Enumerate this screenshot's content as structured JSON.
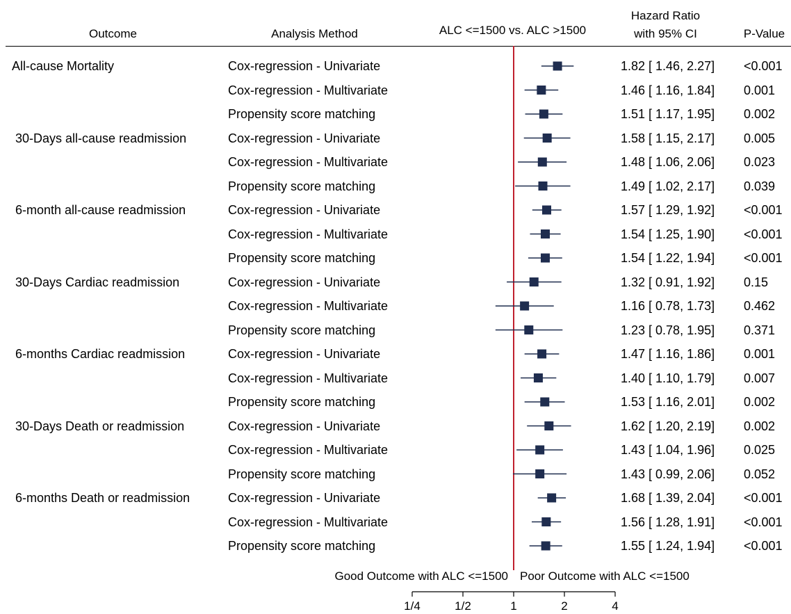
{
  "headers": {
    "outcome": "Outcome",
    "method": "Analysis Method",
    "comparison": "ALC <=1500 vs. ALC >1500",
    "hr_line1": "Hazard Ratio",
    "hr_line2": "with 95% CI",
    "pvalue": "P-Value"
  },
  "footer": {
    "left_label": "Good Outcome with ALC <=1500",
    "right_label": "Poor Outcome with ALC <=1500"
  },
  "colors": {
    "marker": "#1f2d4f",
    "ref_line": "#c0202e",
    "axis": "#000000"
  },
  "chart_data": {
    "type": "forest",
    "x_scale": "log2",
    "xlim": [
      0.25,
      4
    ],
    "ticks": [
      {
        "value": 0.25,
        "label": "1/4"
      },
      {
        "value": 0.5,
        "label": "1/2"
      },
      {
        "value": 1,
        "label": "1"
      },
      {
        "value": 2,
        "label": "2"
      },
      {
        "value": 4,
        "label": "4"
      }
    ],
    "reference": 1,
    "rows": [
      {
        "outcome": "All-cause Mortality",
        "method": "Cox-regression - Univariate",
        "hr": 1.82,
        "lo": 1.46,
        "hi": 2.27,
        "ci_text": "1.82 [ 1.46,  2.27]",
        "p": "<0.001"
      },
      {
        "outcome": "",
        "method": "Cox-regression - Multivariate",
        "hr": 1.46,
        "lo": 1.16,
        "hi": 1.84,
        "ci_text": "1.46 [ 1.16,  1.84]",
        "p": "0.001"
      },
      {
        "outcome": "",
        "method": "Propensity score matching",
        "hr": 1.51,
        "lo": 1.17,
        "hi": 1.95,
        "ci_text": "1.51 [ 1.17,  1.95]",
        "p": "0.002"
      },
      {
        "outcome": "30-Days all-cause readmission",
        "method": "Cox-regression - Univariate",
        "hr": 1.58,
        "lo": 1.15,
        "hi": 2.17,
        "ci_text": "1.58 [ 1.15,  2.17]",
        "p": "0.005"
      },
      {
        "outcome": "",
        "method": "Cox-regression - Multivariate",
        "hr": 1.48,
        "lo": 1.06,
        "hi": 2.06,
        "ci_text": "1.48 [ 1.06,  2.06]",
        "p": "0.023"
      },
      {
        "outcome": "",
        "method": "Propensity score matching",
        "hr": 1.49,
        "lo": 1.02,
        "hi": 2.17,
        "ci_text": "1.49 [ 1.02,  2.17]",
        "p": "0.039"
      },
      {
        "outcome": "6-month all-cause readmission",
        "method": "Cox-regression - Univariate",
        "hr": 1.57,
        "lo": 1.29,
        "hi": 1.92,
        "ci_text": "1.57 [ 1.29,  1.92]",
        "p": "<0.001"
      },
      {
        "outcome": "",
        "method": "Cox-regression - Multivariate",
        "hr": 1.54,
        "lo": 1.25,
        "hi": 1.9,
        "ci_text": "1.54 [ 1.25,  1.90]",
        "p": "<0.001"
      },
      {
        "outcome": "",
        "method": "Propensity score matching",
        "hr": 1.54,
        "lo": 1.22,
        "hi": 1.94,
        "ci_text": "1.54 [ 1.22,  1.94]",
        "p": "<0.001"
      },
      {
        "outcome": "30-Days Cardiac readmission",
        "method": "Cox-regression - Univariate",
        "hr": 1.32,
        "lo": 0.91,
        "hi": 1.92,
        "ci_text": "1.32 [ 0.91,  1.92]",
        "p": "0.15"
      },
      {
        "outcome": "",
        "method": "Cox-regression - Multivariate",
        "hr": 1.16,
        "lo": 0.78,
        "hi": 1.73,
        "ci_text": "1.16 [ 0.78,  1.73]",
        "p": "0.462"
      },
      {
        "outcome": "",
        "method": "Propensity score matching",
        "hr": 1.23,
        "lo": 0.78,
        "hi": 1.95,
        "ci_text": "1.23 [ 0.78,  1.95]",
        "p": "0.371"
      },
      {
        "outcome": "6-months Cardiac readmission",
        "method": "Cox-regression - Univariate",
        "hr": 1.47,
        "lo": 1.16,
        "hi": 1.86,
        "ci_text": "1.47 [ 1.16,  1.86]",
        "p": "0.001"
      },
      {
        "outcome": "",
        "method": "Cox-regression - Multivariate",
        "hr": 1.4,
        "lo": 1.1,
        "hi": 1.79,
        "ci_text": "1.40 [ 1.10,  1.79]",
        "p": "0.007"
      },
      {
        "outcome": "",
        "method": "Propensity score matching",
        "hr": 1.53,
        "lo": 1.16,
        "hi": 2.01,
        "ci_text": "1.53 [ 1.16,  2.01]",
        "p": "0.002"
      },
      {
        "outcome": "30-Days Death or readmission",
        "method": "Cox-regression - Univariate",
        "hr": 1.62,
        "lo": 1.2,
        "hi": 2.19,
        "ci_text": "1.62 [ 1.20,  2.19]",
        "p": "0.002"
      },
      {
        "outcome": "",
        "method": "Cox-regression - Multivariate",
        "hr": 1.43,
        "lo": 1.04,
        "hi": 1.96,
        "ci_text": "1.43 [ 1.04,  1.96]",
        "p": "0.025"
      },
      {
        "outcome": "",
        "method": "Propensity score matching",
        "hr": 1.43,
        "lo": 0.99,
        "hi": 2.06,
        "ci_text": "1.43 [ 0.99,  2.06]",
        "p": "0.052"
      },
      {
        "outcome": "6-months Death or readmission",
        "method": "Cox-regression - Univariate",
        "hr": 1.68,
        "lo": 1.39,
        "hi": 2.04,
        "ci_text": "1.68 [ 1.39,  2.04]",
        "p": "<0.001"
      },
      {
        "outcome": "",
        "method": "Cox-regression - Multivariate",
        "hr": 1.56,
        "lo": 1.28,
        "hi": 1.91,
        "ci_text": "1.56 [ 1.28,  1.91]",
        "p": "<0.001"
      },
      {
        "outcome": "",
        "method": "Propensity score matching",
        "hr": 1.55,
        "lo": 1.24,
        "hi": 1.94,
        "ci_text": "1.55 [ 1.24,  1.94]",
        "p": "<0.001"
      }
    ]
  }
}
